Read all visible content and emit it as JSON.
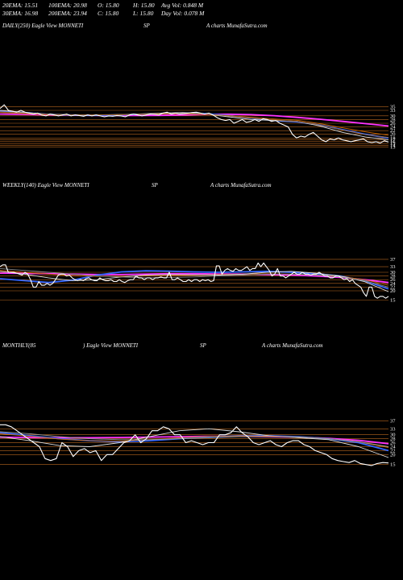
{
  "header": {
    "row1": [
      "20EMA: 15.51",
      "100EMA: 20.98",
      "O: 15.80",
      "H: 15.80",
      "Avg Vol: 0.848  M"
    ],
    "row2": [
      "30EMA: 16.98",
      "200EMA: 23.94",
      "C: 15.80",
      "L: 15.80",
      "Day Vol: 0.078  M"
    ]
  },
  "panels": [
    {
      "label": "DAILY(250) Eagle  View  MONNETI",
      "symbol": "SP",
      "source": "A charts MunafaSutra.com"
    },
    {
      "label": "WEEKLY(140) Eagle  View  MONNETI",
      "symbol": "SP",
      "source": "A charts MunafaSutra.com"
    },
    {
      "label": "MONTHLY(85",
      "label2": ") Eagle  View  MONNETI",
      "symbol": "SP",
      "source": "A charts MunafaSutra.com"
    }
  ],
  "chart_data": [
    {
      "type": "line",
      "title": "DAILY(250) Eagle  View  MONNETI",
      "ylim": [
        12,
        40
      ],
      "levels": [
        35,
        33,
        30,
        28,
        26,
        24,
        22,
        20,
        18,
        17,
        16,
        15,
        14,
        13
      ],
      "ytick_labels": [
        "35",
        "33",
        "30",
        "28",
        "26",
        "24",
        "22",
        "20",
        "18",
        "17",
        "16",
        "15",
        "14",
        "13"
      ],
      "price": [
        34,
        36,
        33,
        32.5,
        32,
        33,
        32,
        31.5,
        31,
        31.5,
        30.5,
        30,
        31,
        30.5,
        30,
        30.5,
        31,
        30,
        30.5,
        30.2,
        29.8,
        30.5,
        30,
        30.5,
        30,
        29.5,
        30,
        29.8,
        30.2,
        30,
        29.5,
        30.5,
        31,
        30.5,
        30,
        30.5,
        31,
        30.8,
        30.5,
        31.5,
        32,
        31,
        31.5,
        31,
        31.2,
        31.5,
        31.8,
        32,
        31.5,
        31,
        31.5,
        30.5,
        29,
        28,
        27.5,
        28,
        26,
        27,
        28,
        26.5,
        27,
        28,
        27,
        28.5,
        28,
        27,
        27.5,
        26,
        25,
        24,
        20,
        18,
        19,
        18.5,
        20,
        21,
        19,
        17,
        16,
        17.5,
        17,
        18,
        17,
        16.5,
        16,
        16.5,
        17,
        17.5,
        16,
        15.5,
        16,
        15.2,
        16.5,
        15.8
      ],
      "series": [
        {
          "name": "",
          "color": "#ff33ff",
          "values": [
            31,
            30.8,
            30.6,
            30.4,
            30.3,
            30.2,
            30.2,
            30.3,
            30.5,
            30.8,
            30.9,
            30.7,
            30.1,
            29.2,
            28.2,
            27,
            25.8,
            24.5
          ]
        },
        {
          "name": "",
          "color": "#3366ff",
          "values": [
            32.5,
            31.8,
            31,
            30.5,
            30.3,
            30.5,
            30.8,
            31.2,
            31.5,
            31.2,
            30.2,
            28.8,
            27.5,
            26.8,
            25,
            22.5,
            20,
            18
          ]
        },
        {
          "name": "",
          "color": "#dddddd",
          "values": [
            33,
            32,
            31,
            30.6,
            30.4,
            30.7,
            31,
            31.5,
            31.8,
            31,
            29.5,
            28,
            27.5,
            27,
            24.5,
            21,
            18.5,
            17
          ]
        },
        {
          "name": "",
          "color": "#cc6600",
          "values": [
            31.8,
            31.2,
            30.8,
            30.5,
            30.5,
            30.6,
            30.8,
            31,
            31.1,
            30.8,
            30.2,
            29.2,
            28.3,
            27.6,
            25.8,
            23.5,
            21.3,
            19.5
          ]
        },
        {
          "name": "",
          "color": "#996633",
          "values": [
            32.2,
            31.6,
            31,
            30.6,
            30.5,
            30.7,
            30.9,
            31.2,
            31.4,
            31,
            30,
            28.8,
            27.8,
            27,
            25,
            22.3,
            19.8,
            18.3
          ]
        }
      ]
    },
    {
      "type": "line",
      "title": "WEEKLY(140) Eagle  View  MONNETI",
      "ylim": [
        10,
        40
      ],
      "levels": [
        37,
        33,
        30,
        28,
        26,
        24,
        22,
        20,
        15
      ],
      "ytick_labels": [
        "37",
        "33",
        "30",
        "28",
        "26",
        "24",
        "22",
        "20",
        "15"
      ],
      "price": [
        33,
        34,
        34,
        30,
        30,
        30,
        29.5,
        29,
        28.5,
        30,
        29,
        26,
        22,
        22,
        25,
        23,
        23,
        24,
        23,
        24,
        26,
        28.5,
        29,
        29,
        28,
        28.5,
        27,
        26,
        25.5,
        26,
        25.5,
        26.5,
        27,
        26,
        25.5,
        25.5,
        27,
        26,
        25.5,
        25.5,
        26,
        25,
        25,
        26,
        25,
        24.5,
        25.5,
        26,
        26,
        28,
        27,
        27,
        26,
        27,
        27,
        26,
        27,
        27,
        27.5,
        27,
        27,
        30,
        26,
        26,
        27,
        26,
        25,
        25,
        26,
        25,
        26,
        26,
        25,
        26,
        25.5,
        26,
        25,
        25.5,
        33.5,
        33.5,
        29,
        31,
        32,
        31,
        30.5,
        32,
        31,
        31,
        32,
        33,
        31,
        32,
        32,
        35,
        33,
        35,
        33,
        31,
        28,
        29,
        32,
        28,
        28,
        27,
        28,
        29,
        30,
        29,
        29,
        30,
        29,
        29,
        28.5,
        29,
        29,
        30,
        29,
        28,
        28,
        27,
        27,
        28,
        28,
        27,
        26,
        26.5,
        25,
        26,
        24,
        23,
        22,
        19,
        17,
        22,
        22,
        17,
        16,
        17,
        17,
        16,
        17
      ],
      "series": [
        {
          "name": "",
          "color": "#ff33ff",
          "values": [
            29.5,
            29.4,
            29.2,
            29,
            28.8,
            28.8,
            29,
            29.2,
            29.2,
            29.1,
            29,
            28.8,
            28.5,
            28,
            27.2,
            26,
            24.5
          ]
        },
        {
          "name": "",
          "color": "#3366ff",
          "values": [
            26.5,
            25.5,
            24.5,
            25.8,
            28.5,
            30.2,
            30.8,
            30.6,
            30.2,
            30,
            30.2,
            30.5,
            30,
            29.2,
            28,
            25.5,
            21
          ]
        },
        {
          "name": "",
          "color": "#cc6600",
          "values": [
            31,
            30,
            29,
            28.2,
            27.8,
            27.8,
            28,
            28.2,
            28.5,
            28.8,
            29,
            29.2,
            29,
            28.6,
            27.8,
            26,
            23
          ]
        },
        {
          "name": "",
          "color": "#dddddd",
          "values": [
            30.5,
            29,
            27,
            25.5,
            26,
            27.5,
            28.5,
            28.8,
            28.6,
            28.5,
            29,
            30,
            30.5,
            29.5,
            28,
            25,
            19.5
          ]
        },
        {
          "name": "",
          "color": "#888888",
          "values": [
            32,
            31,
            30,
            29,
            28,
            27.5,
            27,
            27.2,
            27.5,
            28,
            28.5,
            29,
            29,
            28.5,
            27.5,
            25.5,
            22
          ]
        }
      ]
    },
    {
      "type": "line",
      "title": "MONTHLY(85) Eagle  View  MONNETI",
      "ylim": [
        10,
        40
      ],
      "levels": [
        37,
        33,
        30,
        28,
        26,
        24,
        22,
        20,
        15
      ],
      "ytick_labels": [
        "37",
        "33",
        "30",
        "28",
        "26",
        "24",
        "22",
        "20",
        "15"
      ],
      "price": [
        35,
        35,
        34,
        32,
        30,
        28,
        26,
        24,
        18,
        17,
        18,
        26,
        24,
        19,
        22,
        23,
        21,
        22,
        17,
        20,
        20,
        23,
        26,
        27,
        30,
        26,
        28,
        32,
        32,
        34,
        33,
        30,
        30,
        26,
        27,
        26,
        25,
        26,
        26,
        30,
        30,
        31,
        34,
        31,
        29,
        26,
        25,
        26,
        27,
        25,
        24,
        26,
        27,
        27,
        25,
        24,
        22,
        21,
        20,
        18,
        17,
        16.5,
        16,
        17,
        15.5,
        15,
        14.5,
        15.5,
        16,
        15.8
      ],
      "series": [
        {
          "name": "",
          "color": "#ff33ff",
          "values": [
            28.8,
            28.6,
            28.5,
            28.5,
            28.6,
            28.8,
            29,
            29.2,
            29.2,
            29,
            28.8,
            28.2,
            27.2,
            25.5
          ]
        },
        {
          "name": "",
          "color": "#3366ff",
          "values": [
            31,
            29.5,
            28,
            27,
            26.5,
            27,
            28,
            29,
            29.5,
            29.5,
            29,
            28,
            26,
            22
          ]
        },
        {
          "name": "",
          "color": "#dddddd",
          "values": [
            29,
            27,
            24.5,
            24,
            26,
            29,
            32,
            33,
            31.5,
            29.5,
            28.5,
            27.5,
            24,
            18.5
          ]
        },
        {
          "name": "",
          "color": "#cc6600",
          "values": [
            30.5,
            29.2,
            27.8,
            27,
            26.8,
            27.5,
            28.5,
            29.2,
            29.4,
            29.3,
            28.9,
            28,
            26.4,
            23.6
          ]
        },
        {
          "name": "",
          "color": "#999999",
          "values": [
            31.5,
            30.5,
            29,
            28,
            27.5,
            27.5,
            28,
            28.5,
            29,
            29,
            28.8,
            28,
            26.5,
            24
          ]
        }
      ]
    }
  ]
}
